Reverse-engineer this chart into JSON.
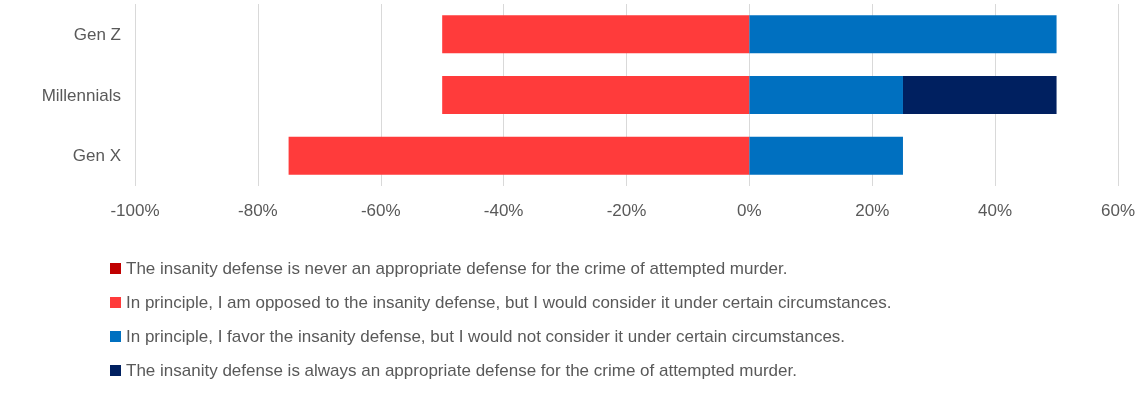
{
  "chart_data": {
    "type": "bar",
    "orientation": "horizontal",
    "stacked": true,
    "categories": [
      "Gen Z",
      "Millennials",
      "Gen X"
    ],
    "series": [
      {
        "name": "The insanity defense is never an appropriate defense for the crime of attempted murder.",
        "color": "#c00000",
        "values": [
          0,
          0,
          0
        ]
      },
      {
        "name": "In principle, I am opposed to the insanity defense, but I would consider it under certain circumstances.",
        "color": "#ff3b3b",
        "values": [
          -50,
          -50,
          -75
        ]
      },
      {
        "name": "In principle, I favor the insanity defense, but I would not consider it under certain circumstances.",
        "color": "#0070c0",
        "values": [
          50,
          25,
          25
        ]
      },
      {
        "name": "The insanity defense is always an appropriate defense for the crime of attempted murder.",
        "color": "#002060",
        "values": [
          0,
          25,
          0
        ]
      }
    ],
    "xlim": [
      -100,
      60
    ],
    "xticks": [
      {
        "value": -100,
        "label": "-100%"
      },
      {
        "value": -80,
        "label": "-80%"
      },
      {
        "value": -60,
        "label": "-60%"
      },
      {
        "value": -40,
        "label": "-40%"
      },
      {
        "value": -20,
        "label": "-20%"
      },
      {
        "value": 0,
        "label": "0%"
      },
      {
        "value": 20,
        "label": "20%"
      },
      {
        "value": 40,
        "label": "40%"
      },
      {
        "value": 60,
        "label": "60%"
      }
    ],
    "grid": "x",
    "legend": "bottom"
  }
}
